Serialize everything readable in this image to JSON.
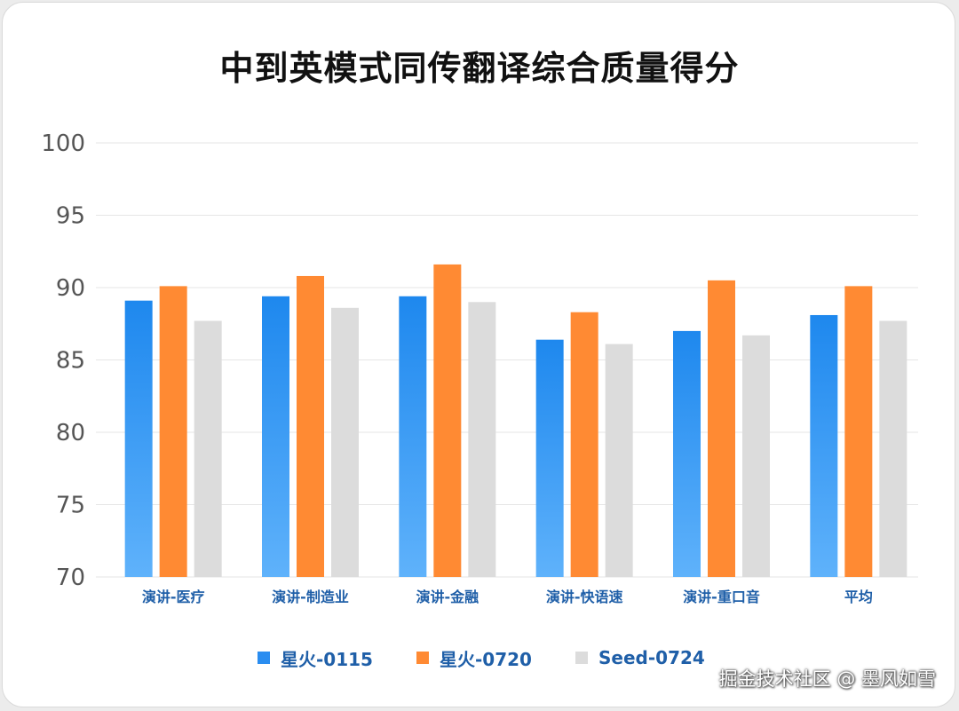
{
  "chart_data": {
    "type": "bar",
    "title": "中到英模式同传翻译综合质量得分",
    "categories": [
      "演讲-医疗",
      "演讲-制造业",
      "演讲-金融",
      "演讲-快语速",
      "演讲-重口音",
      "平均"
    ],
    "series": [
      {
        "name": "星火-0115",
        "color": "#2a8df0",
        "values": [
          89.1,
          89.4,
          89.4,
          86.4,
          87.0,
          88.1
        ]
      },
      {
        "name": "星火-0720",
        "color": "#ff8a33",
        "values": [
          90.1,
          90.8,
          91.6,
          88.3,
          90.5,
          90.1
        ]
      },
      {
        "name": "Seed-0724",
        "color": "#dcdcdc",
        "values": [
          87.7,
          88.6,
          89.0,
          86.1,
          86.7,
          87.7
        ]
      }
    ],
    "xlabel": "",
    "ylabel": "",
    "ylim": [
      70,
      100
    ],
    "yticks": [
      "100",
      "95",
      "90",
      "85",
      "80",
      "75",
      "70"
    ],
    "grid": true,
    "legend_position": "bottom-center"
  },
  "watermark": "掘金技术社区 @ 墨风如雪"
}
